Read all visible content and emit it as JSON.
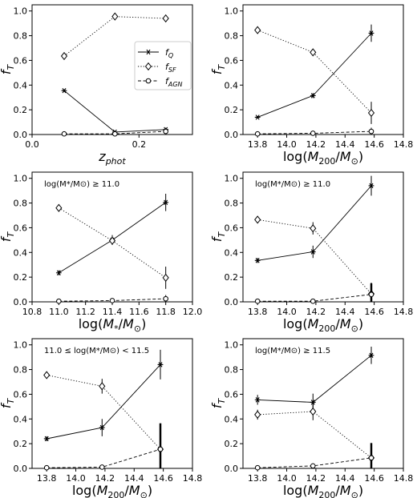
{
  "chart_data": [
    {
      "type": "line",
      "xlabel": "z_phot",
      "ylabel": "f_T",
      "xlim": [
        0.0,
        0.3
      ],
      "ylim": [
        0.0,
        1.05
      ],
      "xticks": [
        "0.0",
        "0.2"
      ],
      "yticks": [
        "0.0",
        "0.2",
        "0.4",
        "0.6",
        "0.8",
        "1.0"
      ],
      "annotation": "",
      "legend": {
        "placement": "center-right",
        "entries": [
          {
            "marker": "star",
            "label_main": "f",
            "label_sub": "Q"
          },
          {
            "marker": "diamond",
            "label_main": "f",
            "label_sub": "SF"
          },
          {
            "marker": "circle",
            "label_main": "f",
            "label_sub": "AGN"
          }
        ]
      },
      "series": [
        {
          "marker": "star",
          "dash": "solid",
          "x": [
            0.06,
            0.155,
            0.25
          ],
          "y": [
            0.355,
            0.02,
            0.04
          ],
          "err": [
            0.01,
            0.01,
            0.015
          ]
        },
        {
          "marker": "diamond",
          "dash": "dotted",
          "x": [
            0.06,
            0.155,
            0.25
          ],
          "y": [
            0.635,
            0.955,
            0.94
          ],
          "err": [
            0.01,
            0.01,
            0.01
          ]
        },
        {
          "marker": "circle",
          "dash": "dashed",
          "x": [
            0.06,
            0.155,
            0.25
          ],
          "y": [
            0.005,
            0.005,
            0.025
          ],
          "err": [
            0.005,
            0.005,
            0.01
          ]
        }
      ]
    },
    {
      "type": "line",
      "xlabel": "log(M200/Msun)",
      "ylabel": "f_T",
      "xlim": [
        13.7,
        14.8
      ],
      "ylim": [
        0.0,
        1.05
      ],
      "xticks": [
        "13.8",
        "14.0",
        "14.2",
        "14.4",
        "14.6",
        "14.8"
      ],
      "yticks": [
        "0.0",
        "0.2",
        "0.4",
        "0.6",
        "0.8",
        "1.0"
      ],
      "annotation": "",
      "series": [
        {
          "marker": "star",
          "dash": "solid",
          "x": [
            13.8,
            14.18,
            14.58
          ],
          "y": [
            0.14,
            0.315,
            0.82
          ],
          "err": [
            0.01,
            0.02,
            0.07
          ]
        },
        {
          "marker": "diamond",
          "dash": "dotted",
          "x": [
            13.8,
            14.18,
            14.58
          ],
          "y": [
            0.845,
            0.665,
            0.175
          ],
          "err": [
            0.01,
            0.02,
            0.09
          ]
        },
        {
          "marker": "circle",
          "dash": "dashed",
          "x": [
            13.8,
            14.18,
            14.58
          ],
          "y": [
            0.005,
            0.01,
            0.025
          ],
          "err": [
            0.005,
            0.01,
            0.03
          ]
        }
      ]
    },
    {
      "type": "line",
      "xlabel": "log(M*/Msun)",
      "ylabel": "f_T",
      "xlim": [
        10.8,
        12.0
      ],
      "ylim": [
        0.0,
        1.05
      ],
      "xticks": [
        "10.8",
        "11.0",
        "11.2",
        "11.4",
        "11.6",
        "11.8",
        "12.0"
      ],
      "yticks": [
        "0.0",
        "0.2",
        "0.4",
        "0.6",
        "0.8",
        "1.0"
      ],
      "annotation": "log(M*/M⊙) ≥ 11.0",
      "series": [
        {
          "marker": "star",
          "dash": "solid",
          "x": [
            11.0,
            11.4,
            11.8
          ],
          "y": [
            0.235,
            0.5,
            0.805
          ],
          "err": [
            0.02,
            0.04,
            0.07
          ]
        },
        {
          "marker": "diamond",
          "dash": "dotted",
          "x": [
            11.0,
            11.4,
            11.8
          ],
          "y": [
            0.76,
            0.495,
            0.195
          ],
          "err": [
            0.01,
            0.03,
            0.09
          ]
        },
        {
          "marker": "circle",
          "dash": "dashed",
          "x": [
            11.0,
            11.4,
            11.8
          ],
          "y": [
            0.005,
            0.01,
            0.025
          ],
          "err": [
            0.005,
            0.01,
            0.03
          ]
        }
      ]
    },
    {
      "type": "line",
      "xlabel": "log(M200/Msun)",
      "ylabel": "f_T",
      "xlim": [
        13.7,
        14.8
      ],
      "ylim": [
        0.0,
        1.05
      ],
      "xticks": [
        "13.8",
        "14.0",
        "14.2",
        "14.4",
        "14.6",
        "14.8"
      ],
      "yticks": [
        "0.0",
        "0.2",
        "0.4",
        "0.6",
        "0.8",
        "1.0"
      ],
      "annotation": "log(M*/M⊙) ≥ 11.0",
      "series": [
        {
          "marker": "star",
          "dash": "solid",
          "x": [
            13.8,
            14.18,
            14.58
          ],
          "y": [
            0.335,
            0.405,
            0.94
          ],
          "err": [
            0.02,
            0.05,
            0.08
          ]
        },
        {
          "marker": "diamond",
          "dash": "dotted",
          "x": [
            13.8,
            14.18,
            14.58
          ],
          "y": [
            0.665,
            0.595,
            0.065
          ],
          "err": [
            0.01,
            0.05,
            0.09
          ]
        },
        {
          "marker": "circle",
          "dash": "dashed",
          "x": [
            13.8,
            14.18,
            14.58
          ],
          "y": [
            0.005,
            0.005,
            0.06
          ],
          "err": [
            0.005,
            0.01,
            0.09
          ]
        }
      ]
    },
    {
      "type": "line",
      "xlabel": "log(M200/Msun)",
      "ylabel": "f_T",
      "xlim": [
        13.7,
        14.8
      ],
      "ylim": [
        0.0,
        1.05
      ],
      "xticks": [
        "13.8",
        "14.0",
        "14.2",
        "14.4",
        "14.6",
        "14.8"
      ],
      "yticks": [
        "0.0",
        "0.2",
        "0.4",
        "0.6",
        "0.8",
        "1.0"
      ],
      "annotation": "11.0 ≤ log(M*/M⊙) < 11.5",
      "series": [
        {
          "marker": "star",
          "dash": "solid",
          "x": [
            13.8,
            14.18,
            14.58
          ],
          "y": [
            0.24,
            0.33,
            0.84
          ],
          "err": [
            0.02,
            0.07,
            0.12
          ]
        },
        {
          "marker": "diamond",
          "dash": "dotted",
          "x": [
            13.8,
            14.18,
            14.58
          ],
          "y": [
            0.755,
            0.665,
            0.155
          ],
          "err": [
            0.02,
            0.06,
            0.2
          ]
        },
        {
          "marker": "circle",
          "dash": "dashed",
          "x": [
            13.8,
            14.18,
            14.58
          ],
          "y": [
            0.005,
            0.01,
            0.155
          ],
          "err": [
            0.005,
            0.01,
            0.21
          ]
        }
      ]
    },
    {
      "type": "line",
      "xlabel": "log(M200/Msun)",
      "ylabel": "f_T",
      "xlim": [
        13.7,
        14.8
      ],
      "ylim": [
        0.0,
        1.05
      ],
      "xticks": [
        "13.8",
        "14.0",
        "14.2",
        "14.4",
        "14.6",
        "14.8"
      ],
      "yticks": [
        "0.0",
        "0.2",
        "0.4",
        "0.6",
        "0.8",
        "1.0"
      ],
      "annotation": "log(M*/M⊙) ≥ 11.5",
      "series": [
        {
          "marker": "star",
          "dash": "solid",
          "x": [
            13.8,
            14.18,
            14.58
          ],
          "y": [
            0.555,
            0.535,
            0.915
          ],
          "err": [
            0.04,
            0.07,
            0.07
          ]
        },
        {
          "marker": "diamond",
          "dash": "dotted",
          "x": [
            13.8,
            14.18,
            14.58
          ],
          "y": [
            0.435,
            0.46,
            0.085
          ],
          "err": [
            0.04,
            0.07,
            0.12
          ]
        },
        {
          "marker": "circle",
          "dash": "dashed",
          "x": [
            13.8,
            14.18,
            14.58
          ],
          "y": [
            0.005,
            0.02,
            0.085
          ],
          "err": [
            0.005,
            0.02,
            0.12
          ]
        }
      ]
    }
  ]
}
